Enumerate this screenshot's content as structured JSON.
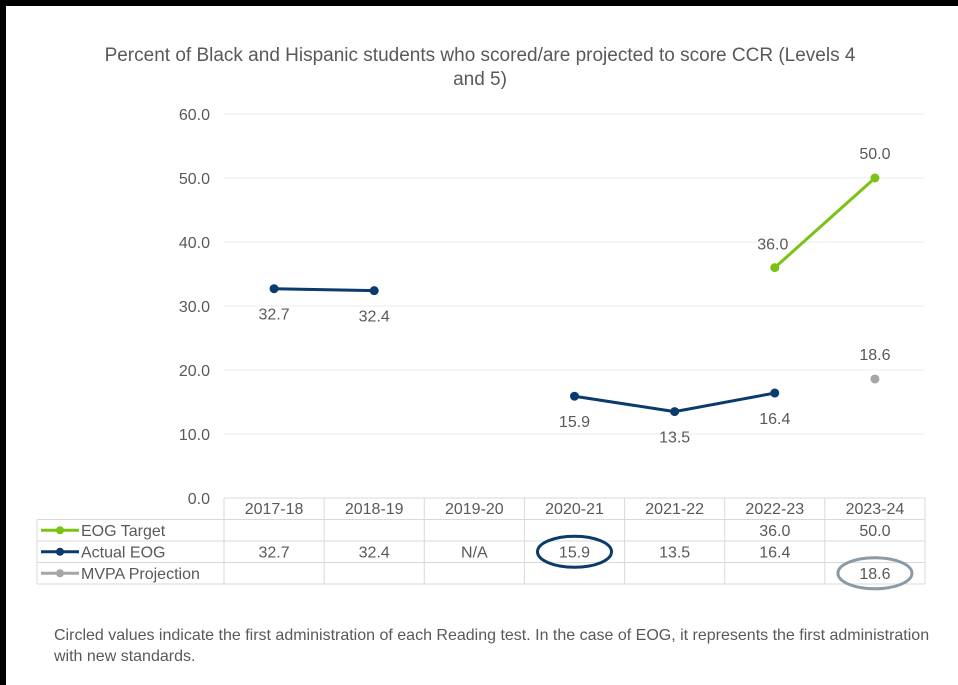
{
  "chart_data": {
    "type": "line",
    "title": "Percent of Black and Hispanic students who scored/are projected to score CCR (Levels 4 and 5)",
    "categories": [
      "2017-18",
      "2018-19",
      "2019-20",
      "2020-21",
      "2021-22",
      "2022-23",
      "2023-24"
    ],
    "ylim": [
      0,
      60
    ],
    "yticks": [
      "0.0",
      "10.0",
      "20.0",
      "30.0",
      "40.0",
      "50.0",
      "60.0"
    ],
    "grid": true,
    "legend": "data-table",
    "series": [
      {
        "name": "EOG Target",
        "color": "#7ac314",
        "values": [
          null,
          null,
          null,
          null,
          null,
          36.0,
          50.0
        ],
        "table": [
          "",
          "",
          "",
          "",
          "",
          "36.0",
          "50.0"
        ]
      },
      {
        "name": "Actual EOG",
        "color": "#0b3a6c",
        "values": [
          32.7,
          32.4,
          null,
          15.9,
          13.5,
          16.4,
          null
        ],
        "table": [
          "32.7",
          "32.4",
          "N/A",
          "15.9",
          "13.5",
          "16.4",
          ""
        ]
      },
      {
        "name": "MVPA Projection",
        "color": "#a6a6a6",
        "values": [
          null,
          null,
          null,
          null,
          null,
          null,
          18.6
        ],
        "table": [
          "",
          "",
          "",
          "",
          "",
          "",
          "18.6"
        ]
      }
    ],
    "circled": [
      {
        "series": "Actual EOG",
        "category": "2020-21",
        "color": "#0b3a6c"
      },
      {
        "series": "MVPA Projection",
        "category": "2023-24",
        "color": "#8c9aa6"
      }
    ],
    "footnote": "Circled values indicate the first administration of each Reading test. In the case of EOG, it represents the first administration with new standards."
  }
}
